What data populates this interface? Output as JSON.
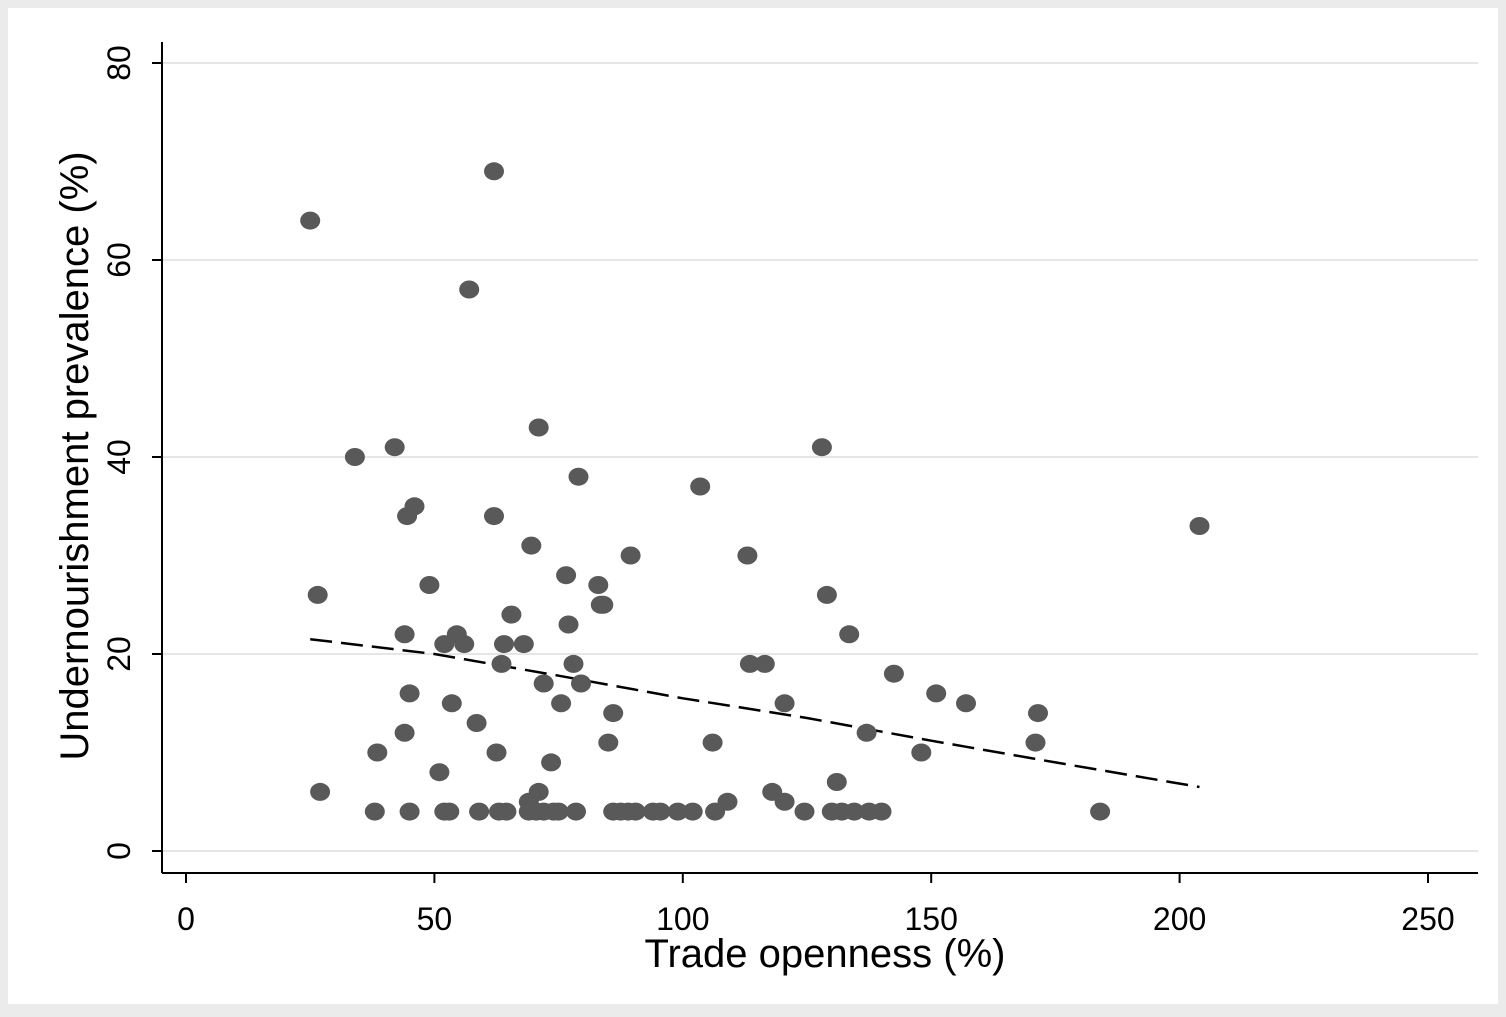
{
  "chart_data": {
    "type": "scatter",
    "title": "",
    "xlabel": "Trade openness (%)",
    "ylabel": "Undernourishment prevalence (%)",
    "xlim": [
      -5,
      260
    ],
    "ylim": [
      -2,
      82
    ],
    "xticks": [
      0,
      50,
      100,
      150,
      200,
      250
    ],
    "yticks": [
      0,
      20,
      40,
      60,
      80
    ],
    "grid": "horizontal",
    "legend": "none",
    "colors": {
      "points": "#595959",
      "fit_line": "#000000",
      "plot_background": "#ffffff",
      "outer_background": "#ebebeb",
      "grid": "#e6e6e6"
    },
    "points": [
      [
        25,
        64
      ],
      [
        26.5,
        26
      ],
      [
        27,
        6
      ],
      [
        34,
        40
      ],
      [
        38,
        4
      ],
      [
        38.5,
        10
      ],
      [
        42,
        41
      ],
      [
        44,
        22
      ],
      [
        44,
        12
      ],
      [
        44.5,
        34
      ],
      [
        45,
        16
      ],
      [
        45,
        4
      ],
      [
        46,
        35
      ],
      [
        49,
        27
      ],
      [
        51,
        8
      ],
      [
        52,
        21
      ],
      [
        52,
        4
      ],
      [
        53,
        4
      ],
      [
        53.5,
        15
      ],
      [
        54.5,
        22
      ],
      [
        56,
        21
      ],
      [
        57,
        57
      ],
      [
        58.5,
        13
      ],
      [
        59,
        4
      ],
      [
        62,
        69
      ],
      [
        62,
        34
      ],
      [
        62.5,
        10
      ],
      [
        63,
        4
      ],
      [
        63.5,
        19
      ],
      [
        64,
        21
      ],
      [
        64.5,
        4
      ],
      [
        65.5,
        24
      ],
      [
        68,
        21
      ],
      [
        69,
        5
      ],
      [
        69,
        4
      ],
      [
        69.5,
        31
      ],
      [
        70.5,
        4
      ],
      [
        71,
        43
      ],
      [
        71,
        6
      ],
      [
        72,
        17
      ],
      [
        72,
        4
      ],
      [
        73.5,
        9
      ],
      [
        74,
        4
      ],
      [
        75,
        4
      ],
      [
        75.5,
        15
      ],
      [
        76.5,
        28
      ],
      [
        77,
        23
      ],
      [
        78,
        19
      ],
      [
        78.5,
        4
      ],
      [
        79,
        38
      ],
      [
        79.5,
        17
      ],
      [
        83,
        27
      ],
      [
        83.5,
        25
      ],
      [
        84,
        25
      ],
      [
        85,
        11
      ],
      [
        86,
        14
      ],
      [
        86,
        4
      ],
      [
        87.5,
        4
      ],
      [
        89,
        4
      ],
      [
        89.5,
        30
      ],
      [
        90.5,
        4
      ],
      [
        94,
        4
      ],
      [
        95.5,
        4
      ],
      [
        99,
        4
      ],
      [
        102,
        4
      ],
      [
        103.5,
        37
      ],
      [
        106,
        11
      ],
      [
        106.5,
        4
      ],
      [
        109,
        5
      ],
      [
        113,
        30
      ],
      [
        113.5,
        19
      ],
      [
        116.5,
        19
      ],
      [
        118,
        6
      ],
      [
        120.5,
        15
      ],
      [
        120.5,
        5
      ],
      [
        124.5,
        4
      ],
      [
        128,
        41
      ],
      [
        129,
        26
      ],
      [
        130,
        4
      ],
      [
        131,
        7
      ],
      [
        132,
        4
      ],
      [
        133.5,
        22
      ],
      [
        134.5,
        4
      ],
      [
        137,
        12
      ],
      [
        137.5,
        4
      ],
      [
        140,
        4
      ],
      [
        142.5,
        18
      ],
      [
        148,
        10
      ],
      [
        151,
        16
      ],
      [
        157,
        15
      ],
      [
        171,
        11
      ],
      [
        171.5,
        14
      ],
      [
        184,
        4
      ],
      [
        204,
        33
      ]
    ],
    "fit_line": {
      "style": "dashed",
      "x": [
        25,
        50,
        75,
        100,
        125,
        150,
        175,
        204
      ],
      "y": [
        21.5,
        20.0,
        17.8,
        15.5,
        13.5,
        11.2,
        9.0,
        6.5
      ]
    }
  }
}
